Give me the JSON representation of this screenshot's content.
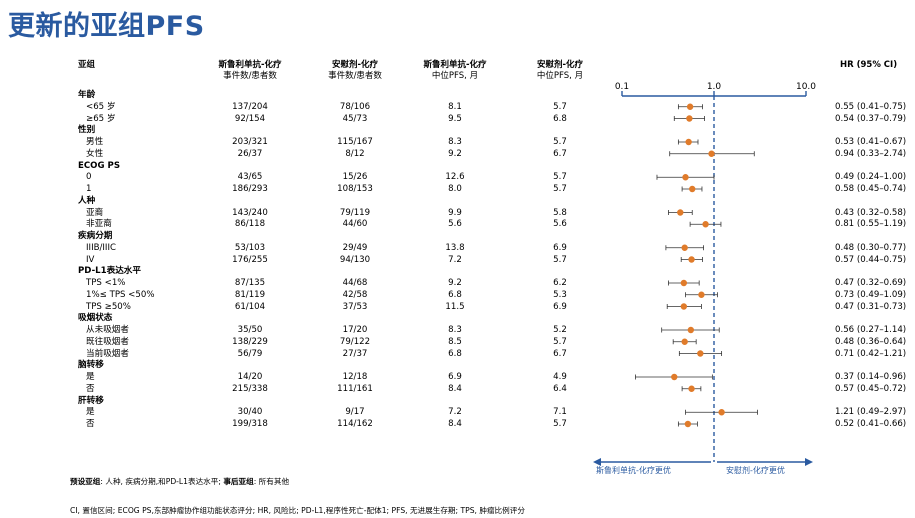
{
  "title": "更新的亚组PFS",
  "headers": {
    "subgroup": "亚组",
    "col1": {
      "title": "斯鲁利单抗-化疗",
      "sub": "事件数/患者数"
    },
    "col2": {
      "title": "安慰剂-化疗",
      "sub": "事件数/患者数"
    },
    "col3": {
      "title": "斯鲁利单抗-化疗",
      "sub": "中位PFS, 月"
    },
    "col4": {
      "title": "安慰剂-化疗",
      "sub": "中位PFS, 月"
    },
    "hr": "HR (95% CI)"
  },
  "axis": {
    "ticks": [
      "0.1",
      "1.0",
      "10.0"
    ]
  },
  "arrows": {
    "left": "斯鲁利单抗-化疗更优",
    "right": "安慰剂-化疗更优"
  },
  "footnote1_bold1": "预设亚组",
  "footnote1_text1": ": 人种, 疾病分期,和PD-L1表达水平; ",
  "footnote1_bold2": "事后亚组",
  "footnote1_text2": ": 所有其他",
  "footnote2": "CI, 置信区间; ECOG PS,东部肿瘤协作组功能状态评分; HR, 风险比; PD-L1,程序性死亡-配体1; PFS, 无进展生存期; TPS, 肿瘤比例评分",
  "rows": [
    {
      "type": "group",
      "label": "年龄"
    },
    {
      "type": "item",
      "label": "<65 岁",
      "c1": "137/204",
      "c2": "78/106",
      "c3": "8.1",
      "c4": "5.7",
      "hr": "0.55 (0.41–0.75)"
    },
    {
      "type": "item",
      "label": "≥65 岁",
      "c1": "92/154",
      "c2": "45/73",
      "c3": "9.5",
      "c4": "6.8",
      "hr": "0.54 (0.37–0.79)"
    },
    {
      "type": "group",
      "label": "性别"
    },
    {
      "type": "item",
      "label": "男性",
      "c1": "203/321",
      "c2": "115/167",
      "c3": "8.3",
      "c4": "5.7",
      "hr": "0.53 (0.41–0.67)"
    },
    {
      "type": "item",
      "label": "女性",
      "c1": "26/37",
      "c2": "8/12",
      "c3": "9.2",
      "c4": "6.7",
      "hr": "0.94 (0.33–2.74)"
    },
    {
      "type": "group",
      "label": "ECOG PS"
    },
    {
      "type": "item",
      "label": "0",
      "c1": "43/65",
      "c2": "15/26",
      "c3": "12.6",
      "c4": "5.7",
      "hr": "0.49 (0.24–1.00)"
    },
    {
      "type": "item",
      "label": "1",
      "c1": "186/293",
      "c2": "108/153",
      "c3": "8.0",
      "c4": "5.7",
      "hr": "0.58 (0.45–0.74)"
    },
    {
      "type": "group",
      "label": "人种"
    },
    {
      "type": "item",
      "label": "亚裔",
      "c1": "143/240",
      "c2": "79/119",
      "c3": "9.9",
      "c4": "5.8",
      "hr": "0.43 (0.32–0.58)"
    },
    {
      "type": "item",
      "label": "非亚裔",
      "c1": "86/118",
      "c2": "44/60",
      "c3": "5.6",
      "c4": "5.6",
      "hr": "0.81 (0.55–1.19)"
    },
    {
      "type": "group",
      "label": "疾病分期"
    },
    {
      "type": "item",
      "label": "IIIB/IIIC",
      "c1": "53/103",
      "c2": "29/49",
      "c3": "13.8",
      "c4": "6.9",
      "hr": "0.48 (0.30–0.77)"
    },
    {
      "type": "item",
      "label": "IV",
      "c1": "176/255",
      "c2": "94/130",
      "c3": "7.2",
      "c4": "5.7",
      "hr": "0.57 (0.44–0.75)"
    },
    {
      "type": "group",
      "label": "PD-L1表达水平"
    },
    {
      "type": "item",
      "label": "TPS <1%",
      "c1": "87/135",
      "c2": "44/68",
      "c3": "9.2",
      "c4": "6.2",
      "hr": "0.47 (0.32–0.69)"
    },
    {
      "type": "item",
      "label": "1%≤ TPS <50%",
      "c1": "81/119",
      "c2": "42/58",
      "c3": "6.8",
      "c4": "5.3",
      "hr": "0.73 (0.49–1.09)"
    },
    {
      "type": "item",
      "label": "TPS ≥50%",
      "c1": "61/104",
      "c2": "37/53",
      "c3": "11.5",
      "c4": "6.9",
      "hr": "0.47 (0.31–0.73)"
    },
    {
      "type": "group",
      "label": "吸烟状态"
    },
    {
      "type": "item",
      "label": "从未吸烟者",
      "c1": "35/50",
      "c2": "17/20",
      "c3": "8.3",
      "c4": "5.2",
      "hr": "0.56 (0.27–1.14)"
    },
    {
      "type": "item",
      "label": "既往吸烟者",
      "c1": "138/229",
      "c2": "79/122",
      "c3": "8.5",
      "c4": "5.7",
      "hr": "0.48 (0.36–0.64)"
    },
    {
      "type": "item",
      "label": "当前吸烟者",
      "c1": "56/79",
      "c2": "27/37",
      "c3": "6.8",
      "c4": "6.7",
      "hr": "0.71 (0.42–1.21)"
    },
    {
      "type": "group",
      "label": "脑转移"
    },
    {
      "type": "item",
      "label": "是",
      "c1": "14/20",
      "c2": "12/18",
      "c3": "6.9",
      "c4": "4.9",
      "hr": "0.37 (0.14–0.96)"
    },
    {
      "type": "item",
      "label": "否",
      "c1": "215/338",
      "c2": "111/161",
      "c3": "8.4",
      "c4": "6.4",
      "hr": "0.57 (0.45–0.72)"
    },
    {
      "type": "group",
      "label": "肝转移"
    },
    {
      "type": "item",
      "label": "是",
      "c1": "30/40",
      "c2": "9/17",
      "c3": "7.2",
      "c4": "7.1",
      "hr": "1.21 (0.49–2.97)"
    },
    {
      "type": "item",
      "label": "否",
      "c1": "199/318",
      "c2": "114/162",
      "c3": "8.4",
      "c4": "5.7",
      "hr": "0.52 (0.41–0.66)"
    }
  ],
  "chart_data": {
    "type": "forest",
    "title": "更新的亚组PFS",
    "xscale": "log",
    "xlim": [
      0.1,
      10.0
    ],
    "reference_line": 1.0,
    "colors": {
      "marker": "#e07b2a",
      "axis": "#2a5aa0",
      "ci": "#333333"
    },
    "series": [
      {
        "name": "<65 岁",
        "hr": 0.55,
        "lo": 0.41,
        "hi": 0.75
      },
      {
        "name": "≥65 岁",
        "hr": 0.54,
        "lo": 0.37,
        "hi": 0.79
      },
      {
        "name": "男性",
        "hr": 0.53,
        "lo": 0.41,
        "hi": 0.67
      },
      {
        "name": "女性",
        "hr": 0.94,
        "lo": 0.33,
        "hi": 2.74
      },
      {
        "name": "0",
        "hr": 0.49,
        "lo": 0.24,
        "hi": 1.0
      },
      {
        "name": "1",
        "hr": 0.58,
        "lo": 0.45,
        "hi": 0.74
      },
      {
        "name": "亚裔",
        "hr": 0.43,
        "lo": 0.32,
        "hi": 0.58
      },
      {
        "name": "非亚裔",
        "hr": 0.81,
        "lo": 0.55,
        "hi": 1.19
      },
      {
        "name": "IIIB/IIIC",
        "hr": 0.48,
        "lo": 0.3,
        "hi": 0.77
      },
      {
        "name": "IV",
        "hr": 0.57,
        "lo": 0.44,
        "hi": 0.75
      },
      {
        "name": "TPS <1%",
        "hr": 0.47,
        "lo": 0.32,
        "hi": 0.69
      },
      {
        "name": "1%≤ TPS <50%",
        "hr": 0.73,
        "lo": 0.49,
        "hi": 1.09
      },
      {
        "name": "TPS ≥50%",
        "hr": 0.47,
        "lo": 0.31,
        "hi": 0.73
      },
      {
        "name": "从未吸烟者",
        "hr": 0.56,
        "lo": 0.27,
        "hi": 1.14
      },
      {
        "name": "既往吸烟者",
        "hr": 0.48,
        "lo": 0.36,
        "hi": 0.64
      },
      {
        "name": "当前吸烟者",
        "hr": 0.71,
        "lo": 0.42,
        "hi": 1.21
      },
      {
        "name": "是",
        "hr": 0.37,
        "lo": 0.14,
        "hi": 0.96
      },
      {
        "name": "否",
        "hr": 0.57,
        "lo": 0.45,
        "hi": 0.72
      },
      {
        "name": "是",
        "hr": 1.21,
        "lo": 0.49,
        "hi": 2.97
      },
      {
        "name": "否",
        "hr": 0.52,
        "lo": 0.41,
        "hi": 0.66
      }
    ]
  }
}
